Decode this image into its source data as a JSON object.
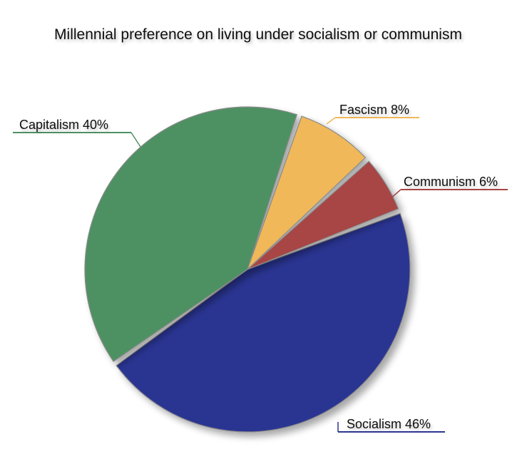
{
  "chart_data": {
    "type": "pie",
    "title": "Millennial preference on living under socialism or communism",
    "slices": [
      {
        "name": "Socialism",
        "value": 46,
        "label": "Socialism 46%",
        "color": "#2c3592"
      },
      {
        "name": "Capitalism",
        "value": 40,
        "label": "Capitalism 40%",
        "color": "#4e9163"
      },
      {
        "name": "Fascism",
        "value": 8,
        "label": "Fascism 8%",
        "color": "#f0b858"
      },
      {
        "name": "Communism",
        "value": 6,
        "label": "Communism 6%",
        "color": "#a84545"
      }
    ],
    "legend": "none"
  }
}
